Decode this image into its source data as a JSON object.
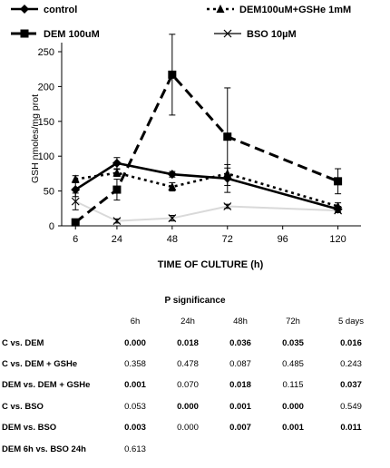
{
  "chart_data": {
    "type": "line",
    "xlabel": "TIME OF CULTURE (h)",
    "ylabel": "GSH nmoles/mg prot",
    "xlim": [
      0,
      130
    ],
    "ylim": [
      0,
      250
    ],
    "xticks": [
      6,
      24,
      48,
      72,
      96,
      120
    ],
    "yticks": [
      0,
      50,
      100,
      150,
      200,
      250
    ],
    "grid": false,
    "legend_position": "top",
    "series": [
      {
        "name": "control",
        "x": [
          6,
          24,
          48,
          72,
          120
        ],
        "values": [
          52,
          90,
          74,
          68,
          24
        ],
        "errors": [
          10,
          8,
          4,
          20,
          4
        ],
        "style": "solid",
        "marker": "diamond",
        "color": "#000000"
      },
      {
        "name": "DEM100uM+GSHe 1mM",
        "x": [
          6,
          24,
          48,
          72,
          120
        ],
        "values": [
          67,
          76,
          56,
          75,
          28
        ],
        "errors": [
          5,
          5,
          6,
          8,
          5
        ],
        "style": "dotted",
        "marker": "triangle",
        "color": "#000000"
      },
      {
        "name": "DEM 100uM",
        "x": [
          6,
          24,
          48,
          72,
          120
        ],
        "values": [
          5,
          52,
          217,
          128,
          64
        ],
        "errors": [
          3,
          15,
          58,
          70,
          18
        ],
        "style": "dashed",
        "marker": "square",
        "color": "#000000"
      },
      {
        "name": "BSO 10µM",
        "x": [
          6,
          24,
          48,
          72,
          120
        ],
        "values": [
          35,
          7,
          11,
          28,
          22
        ],
        "errors": [
          12,
          3,
          4,
          3,
          3
        ],
        "style": "solid-light",
        "marker": "x",
        "color": "#d9d9d9"
      }
    ]
  },
  "table": {
    "title": "P significance",
    "columns": [
      "6h",
      "24h",
      "48h",
      "72h",
      "5 days"
    ],
    "rows": [
      {
        "label": "C vs. DEM",
        "cells": [
          {
            "v": "0.000",
            "bold": true
          },
          {
            "v": "0.018",
            "bold": true
          },
          {
            "v": "0.036",
            "bold": true
          },
          {
            "v": "0.035",
            "bold": true
          },
          {
            "v": "0.016",
            "bold": true
          }
        ]
      },
      {
        "label": "C vs. DEM + GSHe",
        "cells": [
          {
            "v": "0.358",
            "bold": false
          },
          {
            "v": "0.478",
            "bold": false
          },
          {
            "v": "0.087",
            "bold": false
          },
          {
            "v": "0.485",
            "bold": false
          },
          {
            "v": "0.243",
            "bold": false
          }
        ]
      },
      {
        "label": "DEM vs. DEM + GSHe",
        "cells": [
          {
            "v": "0.001",
            "bold": true
          },
          {
            "v": "0.070",
            "bold": false
          },
          {
            "v": "0.018",
            "bold": true
          },
          {
            "v": "0.115",
            "bold": false
          },
          {
            "v": "0.037",
            "bold": true
          }
        ]
      },
      {
        "label": "C vs. BSO",
        "cells": [
          {
            "v": "0.053",
            "bold": false
          },
          {
            "v": "0.000",
            "bold": true
          },
          {
            "v": "0.001",
            "bold": true
          },
          {
            "v": "0.000",
            "bold": true
          },
          {
            "v": "0.549",
            "bold": false
          }
        ]
      },
      {
        "label": "DEM vs. BSO",
        "cells": [
          {
            "v": "0.003",
            "bold": true
          },
          {
            "v": "0.000",
            "bold": false
          },
          {
            "v": "0.007",
            "bold": true
          },
          {
            "v": "0.001",
            "bold": true
          },
          {
            "v": "0.011",
            "bold": true
          }
        ]
      },
      {
        "label": "DEM  6h  vs.  BSO 24h",
        "cells": [
          {
            "v": "0.613",
            "bold": false
          },
          {
            "v": "",
            "bold": false
          },
          {
            "v": "",
            "bold": false
          },
          {
            "v": "",
            "bold": false
          },
          {
            "v": "",
            "bold": false
          }
        ]
      }
    ]
  }
}
